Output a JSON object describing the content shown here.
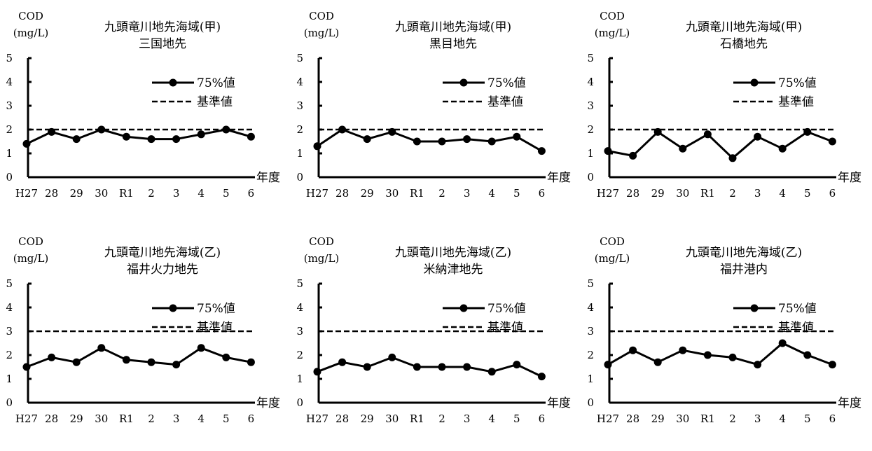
{
  "chart_data": [
    {
      "type": "line",
      "title_line1": "九頭竜川地先海域(甲)",
      "title_line2": "三国地先",
      "ylabel_line1": "COD",
      "ylabel_line2": "(mg/L)",
      "xlabel": "年度",
      "categories": [
        "H27",
        "28",
        "29",
        "30",
        "R1",
        "2",
        "3",
        "4",
        "5",
        "6"
      ],
      "yticks": [
        "0",
        "1",
        "2",
        "3",
        "4",
        "5"
      ],
      "ylim": [
        0,
        5
      ],
      "legend_position": "top-right",
      "series": [
        {
          "name": "75%値",
          "style": "solid-marker",
          "values": [
            1.4,
            1.9,
            1.6,
            2.0,
            1.7,
            1.6,
            1.6,
            1.8,
            2.0,
            1.7
          ]
        },
        {
          "name": "基準値",
          "style": "dashed",
          "values": [
            2,
            2,
            2,
            2,
            2,
            2,
            2,
            2,
            2,
            2
          ]
        }
      ]
    },
    {
      "type": "line",
      "title_line1": "九頭竜川地先海域(甲)",
      "title_line2": "黒目地先",
      "ylabel_line1": "COD",
      "ylabel_line2": "(mg/L)",
      "xlabel": "年度",
      "categories": [
        "H27",
        "28",
        "29",
        "30",
        "R1",
        "2",
        "3",
        "4",
        "5",
        "6"
      ],
      "yticks": [
        "0",
        "1",
        "2",
        "3",
        "4",
        "5"
      ],
      "ylim": [
        0,
        5
      ],
      "legend_position": "top-right",
      "series": [
        {
          "name": "75%値",
          "style": "solid-marker",
          "values": [
            1.3,
            2.0,
            1.6,
            1.9,
            1.5,
            1.5,
            1.6,
            1.5,
            1.7,
            1.1
          ]
        },
        {
          "name": "基準値",
          "style": "dashed",
          "values": [
            2,
            2,
            2,
            2,
            2,
            2,
            2,
            2,
            2,
            2
          ]
        }
      ]
    },
    {
      "type": "line",
      "title_line1": "九頭竜川地先海域(甲)",
      "title_line2": "石橋地先",
      "ylabel_line1": "COD",
      "ylabel_line2": "(mg/L)",
      "xlabel": "年度",
      "categories": [
        "H27",
        "28",
        "29",
        "30",
        "R1",
        "2",
        "3",
        "4",
        "5",
        "6"
      ],
      "yticks": [
        "0",
        "1",
        "2",
        "3",
        "4",
        "5"
      ],
      "ylim": [
        0,
        5
      ],
      "legend_position": "top-right",
      "series": [
        {
          "name": "75%値",
          "style": "solid-marker",
          "values": [
            1.1,
            0.9,
            1.9,
            1.2,
            1.8,
            0.8,
            1.7,
            1.2,
            1.9,
            1.5
          ]
        },
        {
          "name": "基準値",
          "style": "dashed",
          "values": [
            2,
            2,
            2,
            2,
            2,
            2,
            2,
            2,
            2,
            2
          ]
        }
      ]
    },
    {
      "type": "line",
      "title_line1": "九頭竜川地先海域(乙)",
      "title_line2": "福井火力地先",
      "ylabel_line1": "COD",
      "ylabel_line2": "(mg/L)",
      "xlabel": "年度",
      "categories": [
        "H27",
        "28",
        "29",
        "30",
        "R1",
        "2",
        "3",
        "4",
        "5",
        "6"
      ],
      "yticks": [
        "0",
        "1",
        "2",
        "3",
        "4",
        "5"
      ],
      "ylim": [
        0,
        5
      ],
      "legend_position": "top-right",
      "series": [
        {
          "name": "75%値",
          "style": "solid-marker",
          "values": [
            1.5,
            1.9,
            1.7,
            2.3,
            1.8,
            1.7,
            1.6,
            2.3,
            1.9,
            1.7
          ]
        },
        {
          "name": "基準値",
          "style": "dashed",
          "values": [
            3,
            3,
            3,
            3,
            3,
            3,
            3,
            3,
            3,
            3
          ]
        }
      ]
    },
    {
      "type": "line",
      "title_line1": "九頭竜川地先海域(乙)",
      "title_line2": "米納津地先",
      "ylabel_line1": "COD",
      "ylabel_line2": "(mg/L)",
      "xlabel": "年度",
      "categories": [
        "H27",
        "28",
        "29",
        "30",
        "R1",
        "2",
        "3",
        "4",
        "5",
        "6"
      ],
      "yticks": [
        "0",
        "1",
        "2",
        "3",
        "4",
        "5"
      ],
      "ylim": [
        0,
        5
      ],
      "legend_position": "top-right",
      "series": [
        {
          "name": "75%値",
          "style": "solid-marker",
          "values": [
            1.3,
            1.7,
            1.5,
            1.9,
            1.5,
            1.5,
            1.5,
            1.3,
            1.6,
            1.1
          ]
        },
        {
          "name": "基準値",
          "style": "dashed",
          "values": [
            3,
            3,
            3,
            3,
            3,
            3,
            3,
            3,
            3,
            3
          ]
        }
      ]
    },
    {
      "type": "line",
      "title_line1": "九頭竜川地先海域(乙)",
      "title_line2": "福井港内",
      "ylabel_line1": "COD",
      "ylabel_line2": "(mg/L)",
      "xlabel": "年度",
      "categories": [
        "H27",
        "28",
        "29",
        "30",
        "R1",
        "2",
        "3",
        "4",
        "5",
        "6"
      ],
      "yticks": [
        "0",
        "1",
        "2",
        "3",
        "4",
        "5"
      ],
      "ylim": [
        0,
        5
      ],
      "legend_position": "top-right",
      "series": [
        {
          "name": "75%値",
          "style": "solid-marker",
          "values": [
            1.6,
            2.2,
            1.7,
            2.2,
            2.0,
            1.9,
            1.6,
            2.5,
            2.0,
            1.6
          ]
        },
        {
          "name": "基準値",
          "style": "dashed",
          "values": [
            3,
            3,
            3,
            3,
            3,
            3,
            3,
            3,
            3,
            3
          ]
        }
      ]
    }
  ]
}
